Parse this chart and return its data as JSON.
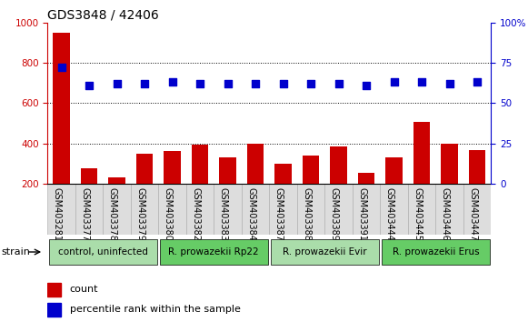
{
  "title": "GDS3848 / 42406",
  "samples": [
    "GSM403281",
    "GSM403377",
    "GSM403378",
    "GSM403379",
    "GSM403380",
    "GSM403382",
    "GSM403383",
    "GSM403384",
    "GSM403387",
    "GSM403388",
    "GSM403389",
    "GSM403391",
    "GSM403444",
    "GSM403445",
    "GSM403446",
    "GSM403447"
  ],
  "counts": [
    950,
    275,
    230,
    350,
    360,
    395,
    330,
    400,
    300,
    340,
    385,
    255,
    330,
    505,
    400,
    365
  ],
  "percentiles": [
    72,
    61,
    62,
    62,
    63,
    62,
    62,
    62,
    62,
    62,
    62,
    61,
    63,
    63,
    62,
    63
  ],
  "groups": [
    {
      "label": "control, uninfected",
      "start": 0,
      "end": 4,
      "color": "#aaddaa"
    },
    {
      "label": "R. prowazekii Rp22",
      "start": 4,
      "end": 8,
      "color": "#66cc66"
    },
    {
      "label": "R. prowazekii Evir",
      "start": 8,
      "end": 12,
      "color": "#aaddaa"
    },
    {
      "label": "R. prowazekii Erus",
      "start": 12,
      "end": 16,
      "color": "#66cc66"
    }
  ],
  "bar_color": "#cc0000",
  "dot_color": "#0000cc",
  "left_ylim": [
    200,
    1000
  ],
  "right_ylim": [
    0,
    100
  ],
  "left_yticks": [
    200,
    400,
    600,
    800,
    1000
  ],
  "right_yticks": [
    0,
    25,
    50,
    75,
    100
  ],
  "right_yticklabels": [
    "0",
    "25",
    "50",
    "75",
    "100%"
  ],
  "grid_lines": [
    400,
    600,
    800
  ],
  "bar_width": 0.6,
  "dot_size": 30,
  "title_fontsize": 10,
  "tick_fontsize": 7.5,
  "label_fontsize": 8,
  "group_label_fontsize": 7.5,
  "strain_fontsize": 8
}
